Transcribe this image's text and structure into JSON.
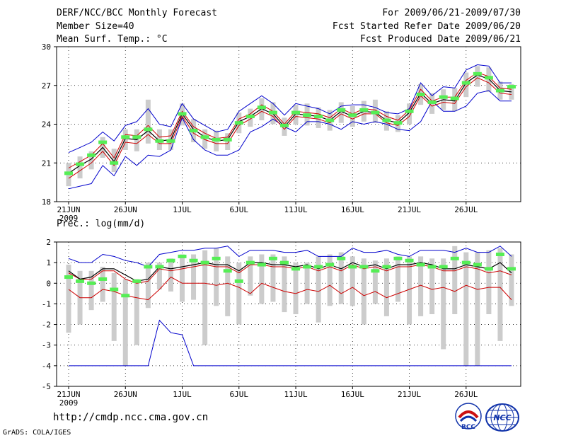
{
  "header": {
    "title": "DERF/NCC/BCC Monthly Forecast",
    "member_size": "Member Size=40",
    "variable": "Mean Surf. Temp.: °C",
    "period": "For 2009/06/21-2009/07/30",
    "fcst_started": "Fcst Started Refer Date 2009/06/20",
    "fcst_produced": "Fcst Produced Date 2009/06/21"
  },
  "footer": {
    "url": "http://cmdp.ncc.cma.gov.cn",
    "grads": "GrADS: COLA/IGES",
    "logo_left": "BCC",
    "logo_right": "NCC"
  },
  "colors": {
    "spread_line": "#0000cc",
    "quartile_line": "#cc0000",
    "mean_line": "#000000",
    "box": "#cccccc",
    "median_marker": "#55ee55"
  },
  "chart_data": [
    {
      "type": "line",
      "title": "Mean Surf. Temp.: °C",
      "xlabel": "",
      "ylabel": "",
      "ylim": [
        18,
        30
      ],
      "yticks": [
        "18",
        "21",
        "24",
        "27",
        "30"
      ],
      "xtick_labels": [
        "21JUN",
        "26JUN",
        "1JUL",
        "6JUL",
        "11JUL",
        "16JUL",
        "21JUL",
        "26JUL"
      ],
      "xtick_days": [
        0,
        5,
        10,
        15,
        20,
        25,
        30,
        35
      ],
      "year_label": "2009",
      "n_days": 40,
      "series": [
        {
          "name": "max",
          "values": [
            19.0,
            19.2,
            19.4,
            20.8,
            20.0,
            21.5,
            20.8,
            21.6,
            21.5,
            22.0,
            24.5,
            22.8,
            22.0,
            21.6,
            21.6,
            22.0,
            23.4,
            23.8,
            24.4,
            23.8,
            23.4,
            24.2,
            24.2,
            24.0,
            23.6,
            24.2,
            24.0,
            24.2,
            24.0,
            23.6,
            23.5,
            24.2,
            25.8,
            25.0,
            25.0,
            25.4,
            26.4,
            26.6,
            25.8,
            25.8
          ]
        },
        {
          "name": "min",
          "values": [
            21.8,
            22.2,
            22.6,
            23.4,
            22.7,
            23.9,
            24.2,
            25.2,
            24.0,
            23.8,
            25.6,
            24.4,
            23.9,
            23.4,
            23.6,
            25.0,
            25.6,
            26.2,
            25.6,
            24.7,
            25.6,
            25.4,
            25.2,
            24.8,
            25.4,
            25.5,
            25.5,
            25.3,
            24.9,
            24.8,
            25.2,
            27.2,
            26.2,
            26.9,
            26.8,
            28.2,
            28.6,
            28.5,
            27.2,
            27.2
          ]
        },
        {
          "name": "lower",
          "values": [
            19.8,
            20.4,
            21.0,
            21.9,
            20.8,
            22.6,
            22.5,
            23.2,
            22.5,
            22.5,
            24.6,
            23.3,
            22.8,
            22.5,
            22.5,
            23.9,
            24.4,
            25.0,
            24.6,
            23.6,
            24.6,
            24.5,
            24.4,
            24.1,
            24.8,
            24.4,
            24.8,
            24.8,
            24.1,
            23.9,
            24.6,
            26.2,
            25.4,
            25.7,
            25.6,
            26.9,
            27.6,
            27.2,
            26.4,
            26.3
          ]
        },
        {
          "name": "upper",
          "values": [
            20.6,
            21.1,
            21.6,
            22.5,
            21.4,
            23.2,
            23.1,
            23.9,
            23.0,
            23.1,
            25.0,
            23.8,
            23.3,
            22.9,
            23.0,
            24.4,
            24.8,
            25.5,
            25.0,
            24.0,
            25.0,
            24.9,
            24.8,
            24.5,
            25.2,
            24.8,
            25.2,
            25.1,
            24.6,
            24.3,
            25.1,
            26.7,
            25.8,
            26.1,
            26.1,
            27.4,
            28.0,
            27.7,
            26.8,
            26.7
          ]
        },
        {
          "name": "mean",
          "values": [
            20.2,
            20.8,
            21.3,
            22.2,
            21.1,
            22.9,
            22.8,
            23.5,
            22.7,
            22.8,
            24.8,
            23.6,
            23.0,
            22.7,
            22.8,
            24.2,
            24.6,
            25.2,
            24.8,
            23.8,
            24.8,
            24.7,
            24.6,
            24.3,
            25.0,
            24.6,
            25.0,
            24.9,
            24.3,
            24.1,
            24.9,
            26.4,
            25.6,
            25.9,
            25.8,
            27.2,
            27.8,
            27.5,
            26.6,
            26.5
          ]
        },
        {
          "name": "median",
          "values": [
            20.2,
            20.9,
            21.6,
            22.6,
            21.0,
            23.0,
            23.0,
            23.6,
            22.7,
            22.7,
            24.8,
            23.5,
            23.0,
            22.8,
            22.8,
            24.1,
            24.6,
            25.3,
            24.9,
            23.9,
            24.9,
            24.7,
            24.6,
            24.3,
            25.1,
            24.7,
            25.1,
            24.9,
            24.3,
            24.1,
            25.0,
            26.3,
            25.7,
            26.1,
            26.0,
            27.2,
            27.9,
            27.6,
            26.6,
            26.9
          ]
        },
        {
          "name": "box_low",
          "values": [
            19.2,
            19.8,
            20.5,
            21.4,
            20.3,
            22.0,
            21.9,
            22.5,
            22.0,
            22.0,
            23.9,
            22.6,
            22.1,
            21.9,
            22.0,
            23.3,
            23.8,
            24.3,
            24.0,
            23.1,
            24.0,
            23.9,
            23.7,
            23.5,
            24.1,
            23.8,
            24.2,
            24.1,
            23.5,
            23.4,
            24.0,
            25.5,
            24.8,
            25.1,
            25.0,
            26.1,
            26.9,
            26.5,
            25.9,
            25.9
          ]
        },
        {
          "name": "box_high",
          "values": [
            21.0,
            21.5,
            21.9,
            23.0,
            22.1,
            23.6,
            23.6,
            25.9,
            23.6,
            23.6,
            25.6,
            24.4,
            23.6,
            23.5,
            23.3,
            24.9,
            25.2,
            26.0,
            25.7,
            24.5,
            25.5,
            25.6,
            25.3,
            25.1,
            25.7,
            25.4,
            25.8,
            25.9,
            25.0,
            24.7,
            25.6,
            27.1,
            26.4,
            26.7,
            26.8,
            28.0,
            28.5,
            28.4,
            27.3,
            27.1
          ]
        }
      ]
    },
    {
      "type": "line",
      "title": "Prec.: log(mm/d)",
      "xlabel": "",
      "ylabel": "",
      "ylim": [
        -5,
        2
      ],
      "yticks": [
        "-5",
        "-4",
        "-3",
        "-2",
        "-1",
        "0",
        "1",
        "2"
      ],
      "xtick_labels": [
        "21JUN",
        "26JUN",
        "1JUL",
        "6JUL",
        "11JUL",
        "16JUL",
        "21JUL",
        "26JUL"
      ],
      "xtick_days": [
        0,
        5,
        10,
        15,
        20,
        25,
        30,
        35
      ],
      "year_label": "2009",
      "n_days": 40,
      "series": [
        {
          "name": "max",
          "values": [
            1.2,
            1.0,
            1.0,
            1.4,
            1.3,
            1.1,
            1.0,
            0.8,
            1.4,
            1.5,
            1.6,
            1.6,
            1.7,
            1.7,
            1.8,
            1.3,
            1.6,
            1.6,
            1.6,
            1.5,
            1.5,
            1.6,
            1.3,
            1.3,
            1.3,
            1.7,
            1.5,
            1.5,
            1.6,
            1.4,
            1.3,
            1.6,
            1.6,
            1.6,
            1.5,
            1.7,
            1.5,
            1.5,
            1.8,
            1.3
          ]
        },
        {
          "name": "min",
          "values": [
            -4,
            -4,
            -4,
            -4,
            -4,
            -4,
            -4,
            -4,
            -1.8,
            -2.4,
            -2.5,
            -4,
            -4,
            -4,
            -4,
            -4,
            -4,
            -4,
            -4,
            -4,
            -4,
            -4,
            -4,
            -4,
            -4,
            -4,
            -4,
            -4,
            -4,
            -4,
            -4,
            -4,
            -4,
            -4,
            -4,
            -4,
            -4,
            -4,
            -4,
            -4
          ]
        },
        {
          "name": "lower",
          "values": [
            -0.3,
            -0.7,
            -0.7,
            -0.3,
            -0.4,
            -0.6,
            -0.7,
            -0.8,
            -0.3,
            0.3,
            0.0,
            0.0,
            0.0,
            -0.1,
            0.0,
            -0.2,
            -0.5,
            0.0,
            -0.2,
            -0.4,
            -0.5,
            -0.3,
            -0.4,
            -0.1,
            -0.5,
            -0.2,
            -0.6,
            -0.4,
            -0.7,
            -0.5,
            -0.3,
            -0.1,
            -0.3,
            -0.2,
            -0.4,
            -0.1,
            -0.3,
            -0.2,
            -0.2,
            -0.8
          ]
        },
        {
          "name": "upper",
          "values": [
            0.5,
            0.2,
            0.2,
            0.6,
            0.6,
            0.2,
            0.0,
            0.1,
            0.7,
            0.6,
            0.7,
            0.8,
            0.9,
            0.8,
            0.8,
            0.5,
            0.9,
            0.9,
            0.8,
            0.8,
            0.7,
            0.8,
            0.6,
            0.8,
            0.6,
            0.9,
            0.7,
            0.8,
            0.6,
            0.8,
            0.8,
            0.9,
            0.8,
            0.6,
            0.6,
            0.8,
            0.7,
            0.5,
            0.6,
            0.4
          ]
        },
        {
          "name": "mean",
          "values": [
            0.6,
            0.2,
            0.3,
            0.7,
            0.7,
            0.4,
            0.1,
            0.2,
            0.8,
            0.7,
            0.8,
            0.9,
            1.0,
            0.9,
            0.9,
            0.6,
            1.0,
            1.0,
            0.9,
            0.9,
            0.8,
            0.9,
            0.7,
            0.9,
            0.7,
            1.0,
            0.8,
            0.9,
            0.7,
            0.9,
            0.9,
            1.0,
            0.9,
            0.7,
            0.7,
            0.9,
            0.8,
            0.7,
            1.0,
            0.5
          ]
        },
        {
          "name": "median",
          "values": [
            0.3,
            0.1,
            0.0,
            0.2,
            -0.3,
            -0.6,
            0.1,
            0.8,
            0.8,
            1.1,
            1.3,
            1.1,
            1.0,
            1.2,
            0.6,
            0.1,
            1.0,
            0.9,
            1.2,
            1.0,
            0.7,
            0.8,
            0.8,
            0.9,
            1.2,
            0.8,
            0.8,
            0.6,
            0.8,
            1.2,
            1.1,
            0.9,
            0.8,
            0.8,
            1.2,
            1.0,
            0.9,
            0.7,
            1.4,
            0.7
          ]
        },
        {
          "name": "box_low",
          "values": [
            -2.4,
            -2.0,
            -1.3,
            -0.9,
            -2.8,
            -4.0,
            -3.0,
            -1.2,
            -0.3,
            -0.4,
            -0.9,
            -0.8,
            -3.0,
            -1.1,
            -1.6,
            -2.0,
            -0.6,
            -1.0,
            -0.9,
            -1.4,
            -1.5,
            -1.0,
            -1.9,
            -1.1,
            -1.0,
            -1.1,
            -2.0,
            -1.0,
            -1.6,
            -0.9,
            -2.0,
            -1.6,
            -1.5,
            -3.2,
            -1.5,
            -4.0,
            -4.0,
            -1.5,
            -2.8,
            -1.1
          ]
        },
        {
          "name": "box_high",
          "values": [
            0.9,
            0.6,
            0.6,
            0.8,
            0.5,
            0.2,
            0.2,
            1.0,
            1.0,
            1.2,
            1.4,
            1.4,
            1.6,
            1.7,
            1.3,
            1.0,
            1.3,
            1.4,
            1.4,
            1.3,
            1.0,
            1.0,
            1.3,
            1.4,
            1.5,
            1.3,
            1.2,
            1.1,
            1.2,
            1.3,
            1.3,
            1.3,
            1.2,
            1.2,
            1.8,
            1.5,
            1.5,
            1.6,
            1.7,
            1.4
          ]
        }
      ]
    }
  ]
}
